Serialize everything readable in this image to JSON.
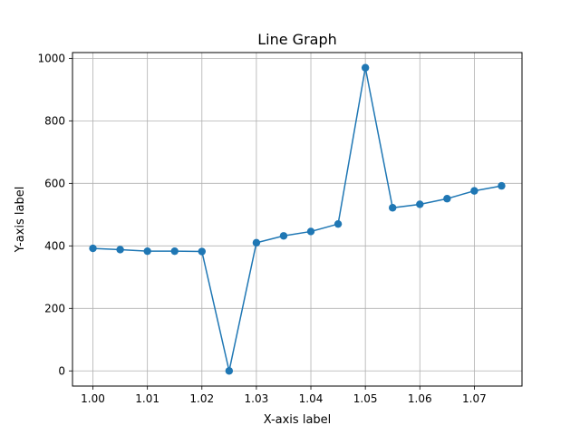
{
  "chart_data": {
    "type": "line",
    "title": "Line Graph",
    "xlabel": "X-axis label",
    "ylabel": "Y-axis label",
    "xlim": [
      0.99625,
      1.07875
    ],
    "ylim": [
      -48.5,
      1018.5
    ],
    "xticks": [
      1.0,
      1.01,
      1.02,
      1.03,
      1.04,
      1.05,
      1.06,
      1.07
    ],
    "xtick_labels": [
      "1.00",
      "1.01",
      "1.02",
      "1.03",
      "1.04",
      "1.05",
      "1.06",
      "1.07"
    ],
    "yticks": [
      0,
      200,
      400,
      600,
      800,
      1000
    ],
    "ytick_labels": [
      "0",
      "200",
      "400",
      "600",
      "800",
      "1000"
    ],
    "grid": true,
    "color": "#1f77b4",
    "series": [
      {
        "x": [
          1.0,
          1.005,
          1.01,
          1.015,
          1.02,
          1.025,
          1.03,
          1.035,
          1.04,
          1.045,
          1.05,
          1.055,
          1.06,
          1.065,
          1.07,
          1.075
        ],
        "values": [
          392,
          388,
          383,
          383,
          382,
          0,
          410,
          432,
          446,
          470,
          970,
          522,
          533,
          551,
          576,
          592
        ]
      }
    ]
  }
}
